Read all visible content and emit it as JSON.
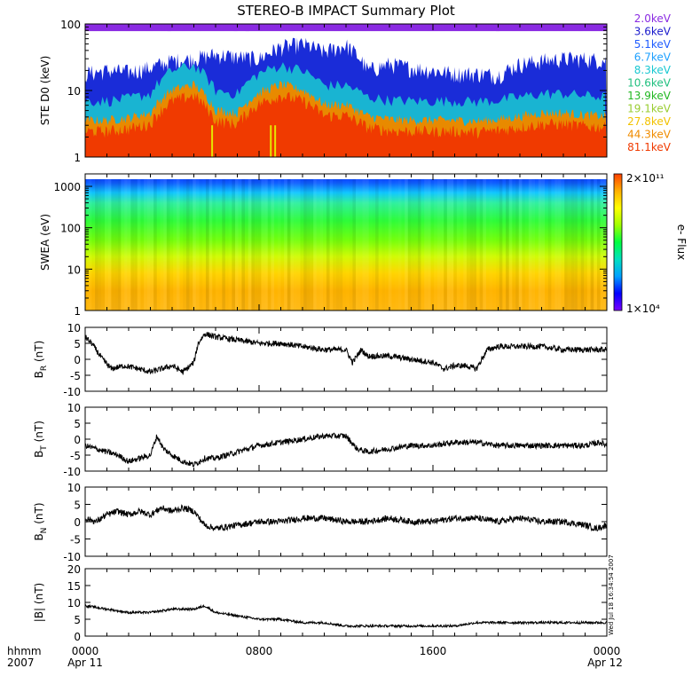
{
  "title": "STEREO-B IMPACT Summary Plot",
  "footer": {
    "time_label": "hhmm",
    "year": "2007",
    "start_date": "Apr 11",
    "end_date": "Apr 12"
  },
  "x_axis": {
    "ticks": [
      "0000",
      "0800",
      "1600",
      "0000"
    ],
    "minor_ticks_per_panel_hours": 24
  },
  "stamp": "Wed Jul 18 16:34:54 2007",
  "chart_data": [
    {
      "type": "heatmap",
      "panel": "ste",
      "ylabel": "STE D0 (keV)",
      "yscale": "log",
      "ylim": [
        1,
        100
      ],
      "yticks": [
        "1",
        "10",
        "100"
      ],
      "legend_placement": "right",
      "series": [
        {
          "name": "2.0keV",
          "color": "#8a2be2"
        },
        {
          "name": "3.6keV",
          "color": "#1a1acc"
        },
        {
          "name": "5.1keV",
          "color": "#1f5cff"
        },
        {
          "name": "6.7keV",
          "color": "#1ea0ff"
        },
        {
          "name": "8.3keV",
          "color": "#19c8d2"
        },
        {
          "name": "10.6keV",
          "color": "#22c080"
        },
        {
          "name": "13.9keV",
          "color": "#22b822"
        },
        {
          "name": "19.1keV",
          "color": "#9acd32"
        },
        {
          "name": "27.8keV",
          "color": "#f2c200"
        },
        {
          "name": "44.3keV",
          "color": "#f08c00"
        },
        {
          "name": "81.1keV",
          "color": "#f03a00"
        }
      ],
      "hours": [
        0,
        1,
        2,
        3,
        4,
        5,
        6,
        7,
        8,
        9,
        10,
        11,
        12,
        13,
        14,
        15,
        16,
        17,
        18,
        19,
        20,
        21,
        22,
        23,
        24
      ],
      "blue_envelope_top": [
        18,
        20,
        19,
        22,
        28,
        30,
        35,
        32,
        30,
        45,
        50,
        38,
        48,
        20,
        25,
        22,
        20,
        18,
        18,
        17,
        25,
        28,
        30,
        30,
        28
      ],
      "orange_envelope_top": [
        3.5,
        3.5,
        3.8,
        4.5,
        10,
        12,
        5,
        4.5,
        9,
        12,
        10,
        6,
        6,
        4,
        3.6,
        3.5,
        3.5,
        3.5,
        3.4,
        3.6,
        4,
        4.5,
        4.5,
        4.2,
        4
      ]
    },
    {
      "type": "heatmap",
      "panel": "swea",
      "ylabel": "SWEA (eV)",
      "yscale": "log",
      "ylim": [
        1,
        2000
      ],
      "yticks": [
        "1",
        "10",
        "100",
        "1000"
      ],
      "colorbar": {
        "label": "e- Flux",
        "max_label": "2×10¹¹",
        "min_label": "1×10⁴",
        "colors": [
          "#7a00ff",
          "#0000ff",
          "#00a0ff",
          "#00e0c0",
          "#00ff40",
          "#a0ff00",
          "#ffff00",
          "#ffb000",
          "#ff4000"
        ]
      },
      "energy_color_stops": [
        {
          "energy": 2000,
          "color": "#0a2bff"
        },
        {
          "energy": 1200,
          "color": "#0f60ff"
        },
        {
          "energy": 700,
          "color": "#11c8ff"
        },
        {
          "energy": 400,
          "color": "#2ff0a0"
        },
        {
          "energy": 150,
          "color": "#2dfc3a"
        },
        {
          "energy": 50,
          "color": "#74ff0c"
        },
        {
          "energy": 20,
          "color": "#d2fb05"
        },
        {
          "energy": 8,
          "color": "#ffd500"
        },
        {
          "energy": 3,
          "color": "#ffb400"
        },
        {
          "energy": 1,
          "color": "#ffb810"
        }
      ]
    },
    {
      "type": "line",
      "panel": "br",
      "ylabel": "B_R (nT)",
      "ylabel_base": "B",
      "ylabel_sub": "R",
      "ylabel_unit": " (nT)",
      "ylim": [
        -10,
        10
      ],
      "yticks": [
        -10,
        -5,
        0,
        5,
        10
      ],
      "x": [
        0,
        0.3,
        0.8,
        1.2,
        1.8,
        2.5,
        3,
        3.5,
        4,
        4.5,
        5,
        5.2,
        5.5,
        6,
        7,
        8,
        9,
        10,
        11,
        12,
        12.3,
        12.7,
        13,
        14,
        15,
        16,
        16.5,
        17,
        17.5,
        18,
        18.5,
        19,
        20,
        21,
        22,
        23,
        24
      ],
      "y": [
        7,
        5,
        0,
        -3,
        -2,
        -3,
        -4,
        -3,
        -2,
        -4,
        -1,
        5,
        8,
        7,
        6,
        5,
        5,
        4,
        3,
        3,
        -1,
        3,
        1,
        1,
        0,
        -1,
        -3,
        -2,
        -2,
        -3,
        3,
        4,
        4,
        4,
        3,
        3,
        3
      ]
    },
    {
      "type": "line",
      "panel": "bt",
      "ylabel": "B_T (nT)",
      "ylabel_base": "B",
      "ylabel_sub": "T",
      "ylabel_unit": " (nT)",
      "ylim": [
        -10,
        10
      ],
      "yticks": [
        -10,
        -5,
        0,
        5,
        10
      ],
      "x": [
        0,
        0.5,
        1,
        1.5,
        2,
        2.5,
        3,
        3.3,
        3.6,
        4,
        4.5,
        5,
        5.5,
        6,
        7,
        8,
        9,
        10,
        11,
        12,
        12.5,
        13,
        14,
        15,
        16,
        17,
        18,
        19,
        20,
        21,
        22,
        23,
        23.7,
        24
      ],
      "y": [
        -2,
        -3,
        -4,
        -5,
        -7,
        -6,
        -5,
        1,
        -3,
        -5,
        -7,
        -8,
        -6,
        -6,
        -4,
        -2,
        -1,
        0,
        1,
        1,
        -3,
        -4,
        -3,
        -2,
        -2,
        -1,
        -1,
        -2,
        -2,
        -2,
        -2,
        -2,
        -1,
        -2
      ]
    },
    {
      "type": "line",
      "panel": "bn",
      "ylabel": "B_N (nT)",
      "ylabel_base": "B",
      "ylabel_sub": "N",
      "ylabel_unit": " (nT)",
      "ylim": [
        -10,
        10
      ],
      "yticks": [
        -10,
        -5,
        0,
        5,
        10
      ],
      "x": [
        0,
        0.5,
        1,
        1.5,
        2,
        2.5,
        3,
        3.5,
        4,
        4.5,
        5,
        5.5,
        6,
        7,
        8,
        9,
        10,
        11,
        12,
        13,
        14,
        15,
        16,
        17,
        18,
        19,
        20,
        21,
        22,
        23,
        23.5,
        24
      ],
      "y": [
        1,
        0,
        2,
        3,
        2,
        3,
        2,
        4,
        3,
        4,
        3,
        -1,
        -2,
        -1,
        0,
        0,
        1,
        1,
        0,
        0,
        1,
        0,
        0,
        1,
        1,
        0,
        1,
        0,
        0,
        -1,
        -2,
        -1
      ]
    },
    {
      "type": "line",
      "panel": "bmag",
      "ylabel": "|B| (nT)",
      "ylim": [
        0,
        20
      ],
      "yticks": [
        0,
        5,
        10,
        15,
        20
      ],
      "x": [
        0,
        1,
        2,
        3,
        4,
        5,
        5.5,
        6,
        7,
        8,
        9,
        10,
        11,
        12,
        13,
        14,
        15,
        16,
        17,
        18,
        19,
        20,
        21,
        22,
        23,
        24
      ],
      "y": [
        9,
        8,
        7,
        7,
        8,
        8,
        9,
        7,
        6,
        5,
        5,
        4,
        4,
        3,
        3,
        3,
        3,
        3,
        3,
        4,
        4,
        4,
        4,
        4,
        4,
        4
      ]
    }
  ]
}
